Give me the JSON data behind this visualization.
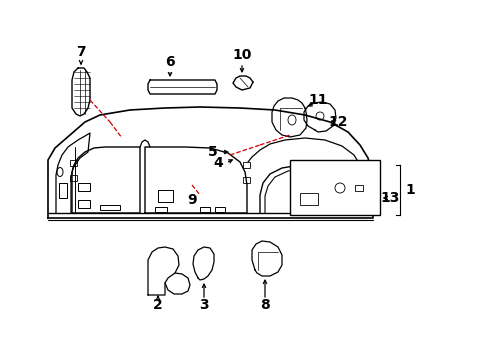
{
  "bg_color": "#ffffff",
  "line_color": "#000000",
  "dash_color": "#cc0000",
  "fig_w": 4.89,
  "fig_h": 3.6,
  "dpi": 100
}
